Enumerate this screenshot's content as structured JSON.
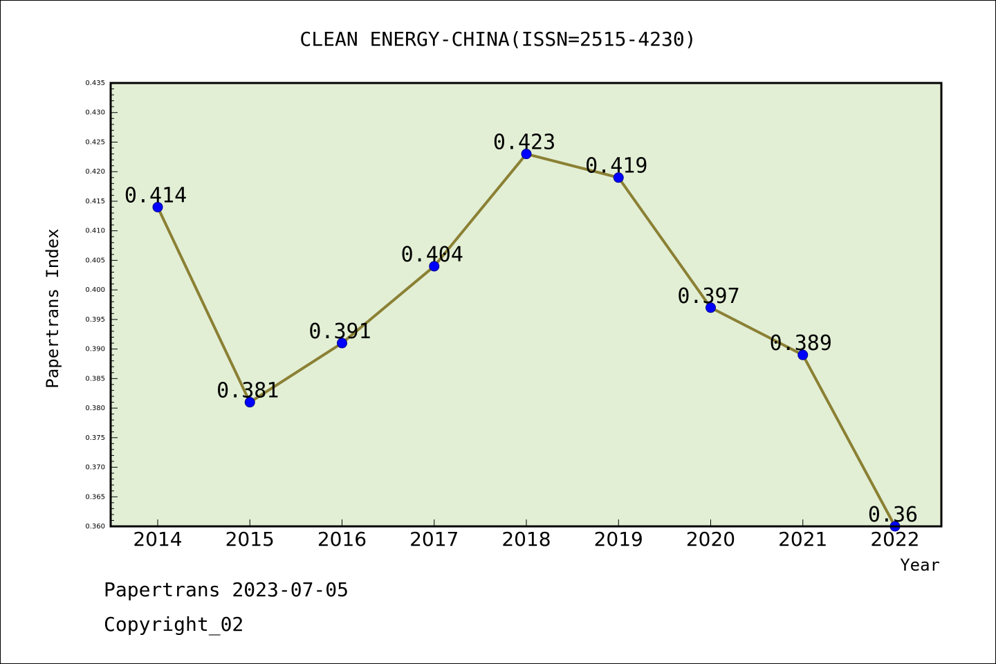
{
  "chart_data": {
    "type": "line",
    "title": "CLEAN ENERGY-CHINA(ISSN=2515-4230)",
    "xlabel": "Year",
    "ylabel": "Papertrans Index",
    "categories": [
      "2014",
      "2015",
      "2016",
      "2017",
      "2018",
      "2019",
      "2020",
      "2021",
      "2022"
    ],
    "values": [
      0.414,
      0.381,
      0.391,
      0.404,
      0.423,
      0.419,
      0.397,
      0.389,
      0.36
    ],
    "data_labels": [
      "0.414",
      "0.381",
      "0.391",
      "0.404",
      "0.423",
      "0.419",
      "0.397",
      "0.389",
      "0.36"
    ],
    "ylim": [
      0.36,
      0.435
    ],
    "yticks": [
      "0.360",
      "0.365",
      "0.370",
      "0.375",
      "0.380",
      "0.385",
      "0.390",
      "0.395",
      "0.400",
      "0.405",
      "0.410",
      "0.415",
      "0.420",
      "0.425",
      "0.430",
      "0.435"
    ],
    "grid": false,
    "legend": "none",
    "colors": {
      "plot_background": "#e2efd5",
      "line": "#8b8034",
      "marker": "#0000ff",
      "marker_edge": "#00008b"
    }
  },
  "footer": {
    "line1": "Papertrans 2023-07-05",
    "line2": "Copyright_02"
  }
}
